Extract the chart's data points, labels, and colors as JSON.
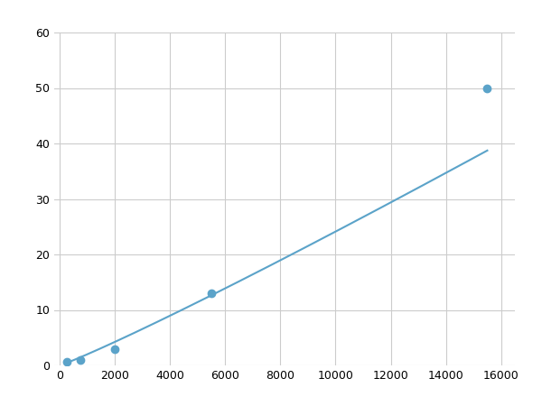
{
  "x_points": [
    250,
    750,
    2000,
    5500,
    15500
  ],
  "y_points": [
    0.7,
    1.0,
    3.0,
    13.0,
    50.0
  ],
  "line_color": "#5ba3c9",
  "marker_color": "#5ba3c9",
  "marker_size": 6,
  "line_width": 1.5,
  "xlim": [
    -200,
    16500
  ],
  "ylim": [
    0,
    60
  ],
  "xticks": [
    0,
    2000,
    4000,
    6000,
    8000,
    10000,
    12000,
    14000,
    16000
  ],
  "yticks": [
    0,
    10,
    20,
    30,
    40,
    50,
    60
  ],
  "grid_color": "#cccccc",
  "background_color": "#ffffff",
  "figsize": [
    6.0,
    4.5
  ],
  "dpi": 100
}
